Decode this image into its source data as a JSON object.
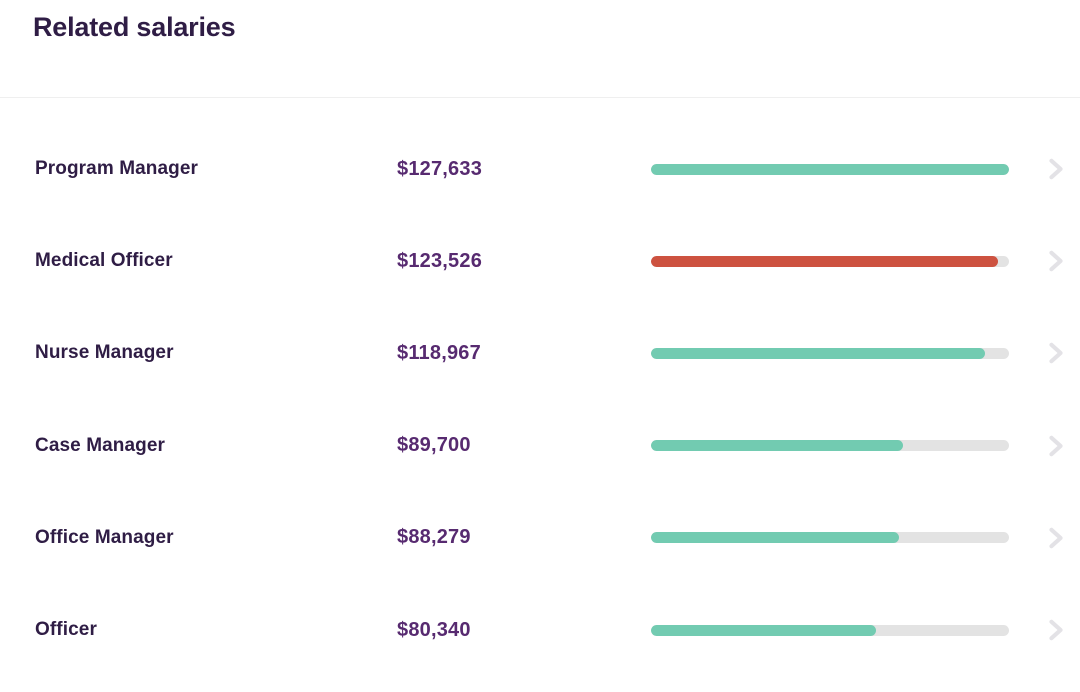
{
  "header": {
    "title": "Related salaries"
  },
  "colors": {
    "background": "#FFFFFF",
    "heading_text": "#2F1D45",
    "job_title_text": "#2F1D45",
    "salary_text": "#572A70",
    "bar_teal": "#72CBB1",
    "bar_red": "#CD5240",
    "bar_track": "#E3E3E3",
    "chevron": "#E3E2E6",
    "divider": "#EFEFEF"
  },
  "icons": {
    "row_icon": "chevron-right-icon"
  },
  "chart_data": {
    "type": "bar",
    "orientation": "horizontal",
    "title": "Related salaries",
    "categories": [
      "Program Manager",
      "Medical Officer",
      "Nurse Manager",
      "Case Manager",
      "Office Manager",
      "Officer"
    ],
    "values": [
      127633,
      123526,
      118967,
      89700,
      88279,
      80340
    ],
    "value_labels": [
      "$127,633",
      "$123,526",
      "$118,967",
      "$89,700",
      "$88,279",
      "$80,340"
    ],
    "bar_colors": [
      "#72CBB1",
      "#CD5240",
      "#72CBB1",
      "#72CBB1",
      "#72CBB1",
      "#72CBB1"
    ],
    "xlim": [
      0,
      127633
    ],
    "grid": false,
    "legend": null
  },
  "rows": [
    {
      "title": "Program Manager",
      "salary": "$127,633",
      "value": 127633,
      "bar_color": "#72CBB1"
    },
    {
      "title": "Medical Officer",
      "salary": "$123,526",
      "value": 123526,
      "bar_color": "#CD5240"
    },
    {
      "title": "Nurse Manager",
      "salary": "$118,967",
      "value": 118967,
      "bar_color": "#72CBB1"
    },
    {
      "title": "Case Manager",
      "salary": "$89,700",
      "value": 89700,
      "bar_color": "#72CBB1"
    },
    {
      "title": "Office Manager",
      "salary": "$88,279",
      "value": 88279,
      "bar_color": "#72CBB1"
    },
    {
      "title": "Officer",
      "salary": "$80,340",
      "value": 80340,
      "bar_color": "#72CBB1"
    }
  ]
}
